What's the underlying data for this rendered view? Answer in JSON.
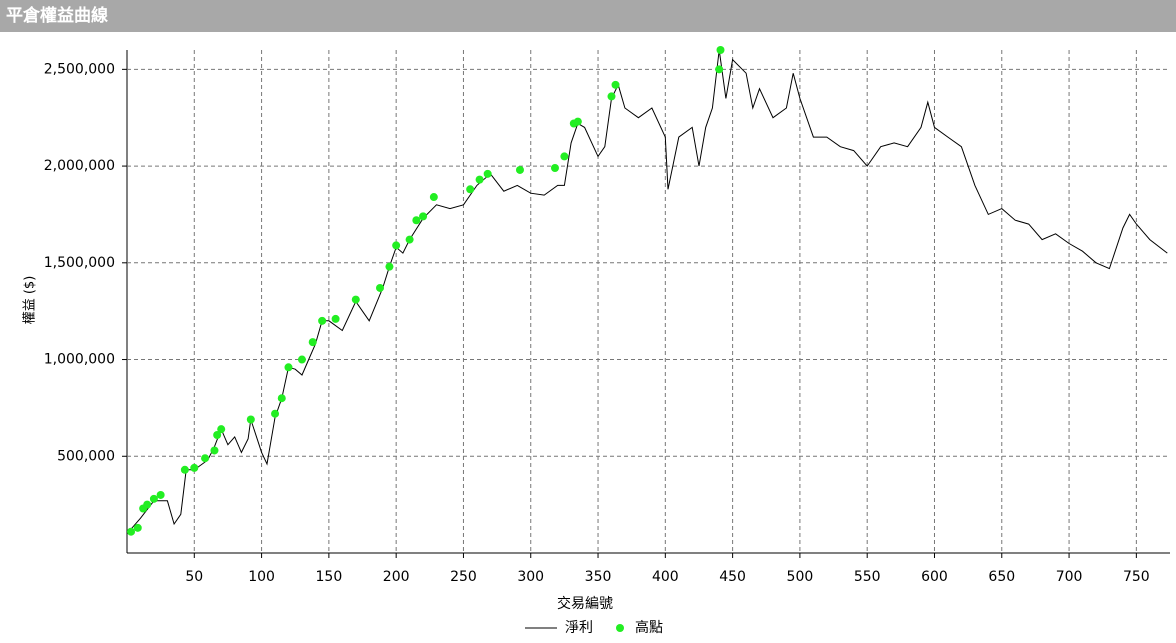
{
  "chart_data": {
    "type": "line",
    "title": "平倉權益曲線",
    "xlabel": "交易編號",
    "ylabel": "權益 ($)",
    "xlim": [
      0,
      775
    ],
    "ylim": [
      0,
      2600000
    ],
    "xticks": [
      50,
      100,
      150,
      200,
      250,
      300,
      350,
      400,
      450,
      500,
      550,
      600,
      650,
      700,
      750
    ],
    "yticks": [
      {
        "value": 500000,
        "label": "500,000"
      },
      {
        "value": 1000000,
        "label": "1,000,000"
      },
      {
        "value": 1500000,
        "label": "1,500,000"
      },
      {
        "value": 2000000,
        "label": "2,000,000"
      },
      {
        "value": 2500000,
        "label": "2,500,000"
      }
    ],
    "grid": true,
    "series": [
      {
        "name": "淨利",
        "type": "line",
        "color": "#000000",
        "x": [
          0,
          10,
          20,
          30,
          35,
          40,
          44,
          50,
          60,
          65,
          70,
          75,
          80,
          85,
          90,
          92,
          100,
          104,
          110,
          115,
          120,
          125,
          130,
          135,
          140,
          145,
          150,
          160,
          170,
          175,
          180,
          190,
          195,
          200,
          205,
          210,
          220,
          230,
          240,
          250,
          260,
          270,
          280,
          290,
          300,
          310,
          320,
          325,
          330,
          335,
          340,
          350,
          355,
          360,
          365,
          370,
          380,
          390,
          400,
          402,
          410,
          420,
          425,
          430,
          435,
          440,
          445,
          450,
          460,
          465,
          470,
          480,
          490,
          495,
          500,
          510,
          520,
          530,
          540,
          550,
          560,
          570,
          580,
          590,
          595,
          600,
          610,
          620,
          630,
          640,
          650,
          660,
          670,
          680,
          690,
          700,
          710,
          720,
          730,
          740,
          745,
          750,
          760,
          773
        ],
        "values": [
          100000,
          180000,
          270000,
          270000,
          150000,
          200000,
          430000,
          430000,
          480000,
          550000,
          640000,
          560000,
          600000,
          520000,
          590000,
          690000,
          520000,
          460000,
          700000,
          800000,
          960000,
          950000,
          920000,
          1000000,
          1080000,
          1200000,
          1200000,
          1150000,
          1300000,
          1250000,
          1200000,
          1370000,
          1480000,
          1580000,
          1550000,
          1620000,
          1730000,
          1800000,
          1780000,
          1800000,
          1900000,
          1960000,
          1870000,
          1900000,
          1860000,
          1850000,
          1900000,
          1900000,
          2120000,
          2220000,
          2200000,
          2050000,
          2100000,
          2350000,
          2420000,
          2300000,
          2250000,
          2300000,
          2150000,
          1880000,
          2150000,
          2200000,
          2000000,
          2200000,
          2300000,
          2600000,
          2350000,
          2550000,
          2480000,
          2300000,
          2400000,
          2250000,
          2300000,
          2480000,
          2350000,
          2150000,
          2150000,
          2100000,
          2080000,
          2000000,
          2100000,
          2120000,
          2100000,
          2200000,
          2330000,
          2200000,
          2150000,
          2100000,
          1900000,
          1750000,
          1780000,
          1720000,
          1700000,
          1620000,
          1650000,
          1600000,
          1560000,
          1500000,
          1470000,
          1680000,
          1750000,
          1700000,
          1620000,
          1550000
        ]
      },
      {
        "name": "高點",
        "type": "scatter",
        "color": "#22ee22",
        "x": [
          3,
          8,
          12,
          15,
          20,
          25,
          43,
          50,
          58,
          65,
          67,
          70,
          92,
          110,
          115,
          120,
          130,
          138,
          145,
          155,
          170,
          188,
          195,
          200,
          210,
          215,
          220,
          228,
          255,
          262,
          268,
          292,
          318,
          325,
          332,
          335,
          360,
          363,
          440,
          441
        ],
        "values": [
          110000,
          130000,
          230000,
          250000,
          280000,
          300000,
          430000,
          440000,
          490000,
          530000,
          610000,
          640000,
          690000,
          720000,
          800000,
          960000,
          1000000,
          1090000,
          1200000,
          1210000,
          1310000,
          1370000,
          1480000,
          1590000,
          1620000,
          1720000,
          1740000,
          1840000,
          1880000,
          1930000,
          1960000,
          1980000,
          1990000,
          2050000,
          2220000,
          2230000,
          2360000,
          2420000,
          2500000,
          2600000
        ]
      }
    ]
  }
}
